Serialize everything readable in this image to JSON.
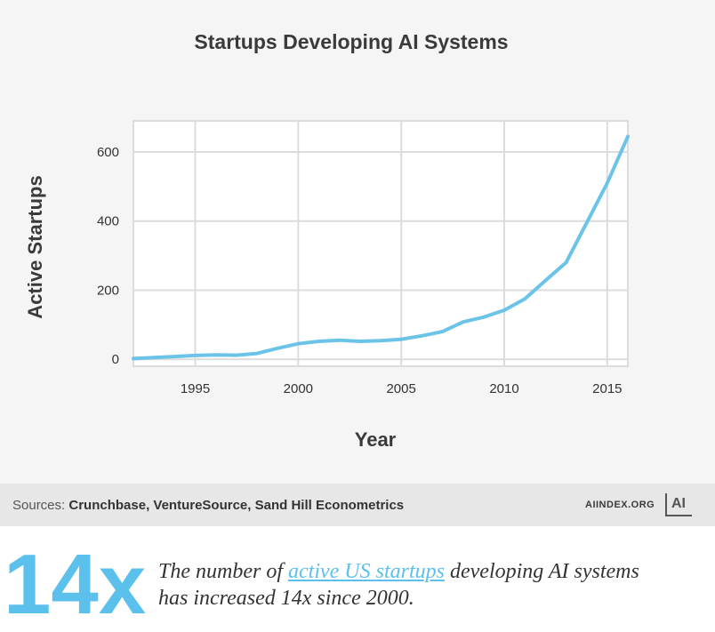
{
  "chart_data": {
    "type": "line",
    "title": "Startups Developing AI Systems",
    "xlabel": "Year",
    "ylabel": "Active Startups",
    "xlim": [
      1992,
      2016
    ],
    "ylim": [
      -20,
      690
    ],
    "x_ticks": [
      1995,
      2000,
      2005,
      2010,
      2015
    ],
    "y_ticks": [
      0,
      200,
      400,
      600
    ],
    "grid": true,
    "series": [
      {
        "color": "#6cc3e8",
        "x": [
          1992,
          1993,
          1994,
          1995,
          1996,
          1997,
          1998,
          1999,
          2000,
          2001,
          2002,
          2003,
          2004,
          2005,
          2006,
          2007,
          2008,
          2009,
          2010,
          2011,
          2012,
          2013,
          2014,
          2015,
          2016
        ],
        "y": [
          2,
          5,
          8,
          11,
          13,
          12,
          17,
          32,
          45,
          52,
          55,
          52,
          54,
          58,
          68,
          80,
          108,
          122,
          142,
          175,
          228,
          280,
          395,
          510,
          645
        ]
      }
    ]
  },
  "footer": {
    "sources_prefix": "Sources: ",
    "sources_list": "Crunchbase, VentureSource, Sand Hill Econometrics",
    "site": "AIINDEX.ORG",
    "logo_text": "AI"
  },
  "highlight": {
    "big_stat": "14x",
    "text_before": "The number of ",
    "link_text": "active US startups",
    "text_after": " developing AI systems has increased 14x since 2000."
  }
}
